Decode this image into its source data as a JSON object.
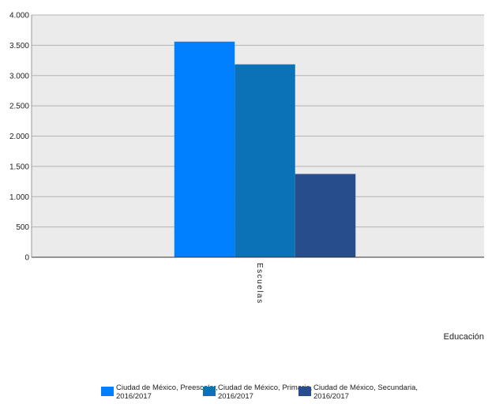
{
  "chart_data": {
    "type": "bar",
    "categories": [
      "Escuelas"
    ],
    "series": [
      {
        "name": "Ciudad de México, Preescolar, 2016/2017",
        "values": [
          3560
        ],
        "color": "#0080ff"
      },
      {
        "name": "Ciudad de México, Primaria, 2016/2017",
        "values": [
          3185
        ],
        "color": "#0b72b8"
      },
      {
        "name": "Ciudad de México, Secundaria, 2016/2017",
        "values": [
          1375
        ],
        "color": "#284d8c"
      }
    ],
    "title": "",
    "xlabel": "Educación",
    "ylabel": "",
    "ylim": [
      0,
      4000
    ],
    "yticks": [
      0,
      500,
      1000,
      1500,
      2000,
      2500,
      3000,
      3500,
      4000
    ],
    "ytick_labels": [
      "0",
      "500",
      "1.000",
      "1.500",
      "2.000",
      "2.500",
      "3.000",
      "3.500",
      "4.000"
    ],
    "legend_lines": [
      [
        "Ciudad de México, Preescolar,",
        "2016/2017"
      ],
      [
        "Ciudad de México, Primaria,",
        "2016/2017"
      ],
      [
        "Ciudad de México, Secundaria,",
        "2016/2017"
      ]
    ],
    "grid": true,
    "legend_position": "bottom",
    "plot_background": "#ebebeb"
  }
}
